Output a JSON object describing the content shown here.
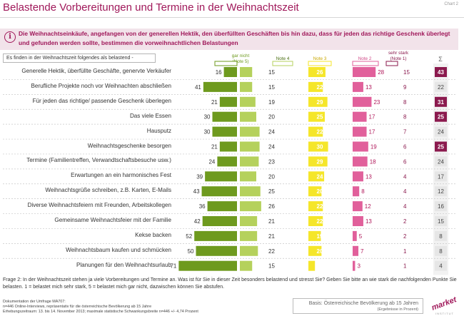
{
  "title": "Belastende Vorbereitungen und Termine in der Weihnachtszeit",
  "chart_no": "Chart 2",
  "info_text": "Die Weihnachtseinkäufe, angefangen von der generellen Hektik, den überfüllten Geschäften bis hin dazu, dass für jeden das richtige Geschenk überlegt und gefunden werden sollte,  bestimmen die vorweihnachtlichen Belastungen",
  "statement_box": "Es finden in der Weihnachtszeit folgendes als belastend -",
  "headers": {
    "note5": "gar nicht (Note 5)",
    "note4": "Note 4",
    "note3": "Note 3",
    "note2": "Note 2",
    "note1": "sehr stark (Note 1)",
    "sigma": "Σ"
  },
  "colors": {
    "note5": "#6e9a1e",
    "note4": "#b5d15c",
    "note3": "#f5e62a",
    "note2": "#e1609b",
    "note1": "#8b1a4e",
    "sigma_high": "#8b1a4e",
    "sigma_low": "#e6e6e6",
    "accent": "#a0185a"
  },
  "chart_data": {
    "type": "bar",
    "categories": [
      "Generelle Hektik, überfüllte Geschäfte, genervte Verkäufer",
      "Berufliche Projekte noch vor Weihnachten abschließen",
      "Für jeden das richtige/ passende Geschenk überlegen",
      "Das viele Essen",
      "Hausputz",
      "Weihnachtsgeschenke besorgen",
      "Termine (Familientreffen, Verwandtschaftsbesuche usw.)",
      "Erwartungen an ein harmonisches Fest",
      "Weihnachtsgrüße schreiben, z.B. Karten, E-Mails",
      "Diverse Weihnachtsfeiern mit Freunden,  Arbeitskollegen",
      "Gemeinsame Weihnachtsfeier mit der Familie",
      "Kekse backen",
      "Weihnachtsbaum kaufen und schmücken",
      "Planungen für den Weihnachtsurlaub"
    ],
    "series": [
      {
        "name": "gar nicht (Note 5)",
        "values": [
          16,
          41,
          21,
          30,
          30,
          21,
          24,
          39,
          43,
          36,
          42,
          52,
          50,
          71
        ]
      },
      {
        "name": "Note 4",
        "values": [
          15,
          15,
          19,
          20,
          24,
          24,
          23,
          20,
          25,
          26,
          21,
          21,
          22,
          15
        ]
      },
      {
        "name": "Note 3",
        "values": [
          26,
          22,
          29,
          25,
          22,
          30,
          29,
          24,
          20,
          22,
          22,
          19,
          20,
          10
        ]
      },
      {
        "name": "Note 2",
        "values": [
          28,
          13,
          23,
          17,
          17,
          19,
          18,
          13,
          8,
          12,
          13,
          5,
          7,
          3
        ]
      },
      {
        "name": "sehr stark (Note 1)",
        "values": [
          15,
          9,
          8,
          8,
          7,
          6,
          6,
          4,
          4,
          4,
          2,
          2,
          1,
          1
        ]
      }
    ],
    "sigma": [
      43,
      22,
      31,
      25,
      24,
      25,
      24,
      17,
      12,
      16,
      15,
      8,
      8,
      4
    ]
  },
  "footer": {
    "question": "Frage 2:  In der Weihnachtszeit stehen ja viele Vorbereitungen und Termine an. Was ist für Sie in dieser Zeit besonders belastend und stresst Sie? Geben Sie bitte an wie stark die nachfolgenden Punkte Sie belasten. 1 = belastet mich sehr stark, 5 = belastet mich gar nicht, dazwischen können Sie abstufen.",
    "doc": "Dokumentation der Umfrage MA707:",
    "sample": "n=446 Online-Interviews, repräsentativ für die österreichische Bevölkerung ab 15 Jahre",
    "period": "Erhebungszeitraum: 13. bis 14. November 2013; maximale statistische Schwankungsbreite n=446 +/- 4,74 Prozent",
    "basis": "Basis: Österreichische Bevölkerung ab 15 Jahren",
    "basis_sub": "(Ergebnisse in Prozent)",
    "logo": "market",
    "logo_sub": "INSTITUT"
  }
}
